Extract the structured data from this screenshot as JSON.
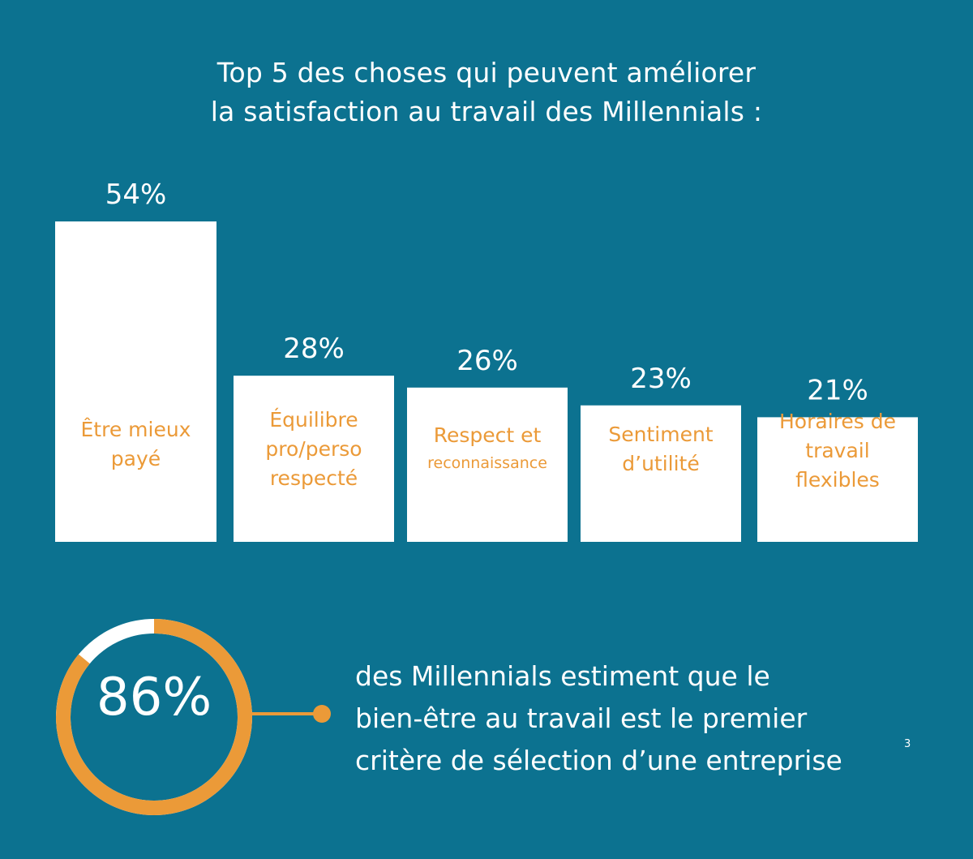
{
  "title": {
    "line1": "Top 5 des choses qui peuvent améliorer",
    "line2": "la satisfaction au travail des Millennials :"
  },
  "chart_data": {
    "type": "bar",
    "categories": [
      [
        "Être mieux",
        "payé"
      ],
      [
        "Équilibre",
        "pro/perso",
        "respecté"
      ],
      [
        "Respect et",
        "reconnaissance"
      ],
      [
        "Sentiment",
        "d’utilité"
      ],
      [
        "Horaires de",
        "travail",
        "flexibles"
      ]
    ],
    "values": [
      54,
      28,
      26,
      23,
      21
    ],
    "value_labels": [
      "54%",
      "28%",
      "26%",
      "23%",
      "21%"
    ],
    "ylim": [
      0,
      100
    ],
    "bar_color": "#ffffff",
    "label_color": "#eb9a38"
  },
  "stat": {
    "value": 86,
    "value_label": "86%",
    "text_lines": [
      "des Millennials estiment que le",
      "bien-être au travail est le premier",
      "critère de sélection d’une entreprise"
    ],
    "footnote": "3",
    "ring_color": "#eb9a38",
    "ring_rest_color": "#ffffff"
  },
  "colors": {
    "background": "#0c7290",
    "accent": "#eb9a38"
  }
}
